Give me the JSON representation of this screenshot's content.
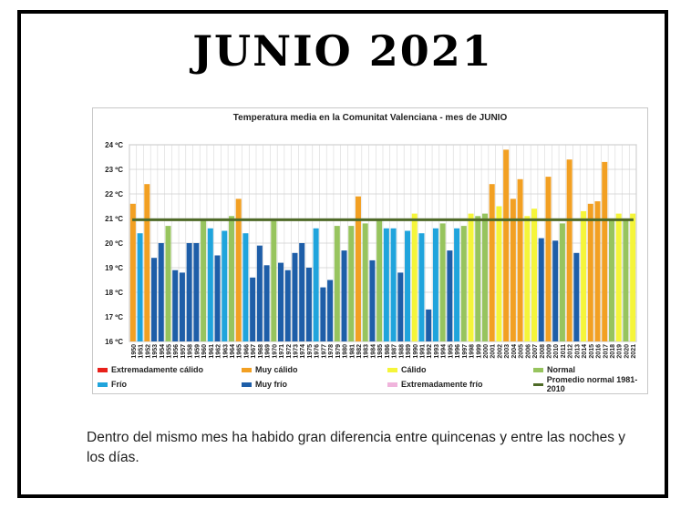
{
  "page": {
    "title": "JUNIO 2021",
    "caption": "Dentro del mismo mes ha habido gran diferencia entre quincenas y entre las noches y los días."
  },
  "chart_data": {
    "type": "bar",
    "title": "Temperatura media en la Comunitat Valenciana - mes de JUNIO",
    "ylim": [
      16,
      24
    ],
    "yticks": [
      "16 ºC",
      "17 ºC",
      "18 ºC",
      "19 ºC",
      "20 ºC",
      "21 ºC",
      "22 ºC",
      "23 ºC",
      "24 ºC"
    ],
    "grid": true,
    "legend_position": "bottom",
    "reference_line": {
      "name": "Promedio normal 1981-2010",
      "value": 20.95,
      "color": "#4e6a27"
    },
    "colors": {
      "EC": "#e8201a",
      "MC": "#f2a023",
      "C": "#f5f53a",
      "N": "#97c45e",
      "F": "#20a4dc",
      "MF": "#1e5ea8",
      "EF": "#f0b4dc"
    },
    "legend": [
      {
        "key": "EC",
        "label": "Extremadamente cálido"
      },
      {
        "key": "MC",
        "label": "Muy cálido"
      },
      {
        "key": "C",
        "label": "Cálido"
      },
      {
        "key": "N",
        "label": "Normal"
      },
      {
        "key": "F",
        "label": "Frío"
      },
      {
        "key": "MF",
        "label": "Muy frío"
      },
      {
        "key": "EF",
        "label": "Extremadamente frío"
      }
    ],
    "categories": [
      "1950",
      "1951",
      "1952",
      "1953",
      "1954",
      "1955",
      "1956",
      "1957",
      "1958",
      "1959",
      "1960",
      "1961",
      "1962",
      "1963",
      "1964",
      "1965",
      "1966",
      "1967",
      "1968",
      "1969",
      "1970",
      "1971",
      "1972",
      "1973",
      "1974",
      "1975",
      "1976",
      "1977",
      "1978",
      "1979",
      "1980",
      "1981",
      "1982",
      "1983",
      "1984",
      "1985",
      "1986",
      "1987",
      "1988",
      "1989",
      "1990",
      "1991",
      "1992",
      "1993",
      "1994",
      "1995",
      "1996",
      "1997",
      "1998",
      "1999",
      "2000",
      "2001",
      "2002",
      "2003",
      "2004",
      "2005",
      "2006",
      "2007",
      "2008",
      "2009",
      "2010",
      "2011",
      "2012",
      "2013",
      "2014",
      "2015",
      "2016",
      "2017",
      "2018",
      "2019",
      "2020",
      "2021"
    ],
    "values": [
      21.6,
      20.4,
      22.4,
      19.4,
      20.0,
      20.7,
      18.9,
      18.8,
      20.0,
      20.0,
      21.0,
      20.6,
      19.5,
      20.5,
      21.1,
      21.8,
      20.4,
      18.6,
      19.9,
      19.1,
      20.9,
      19.2,
      18.9,
      19.6,
      20.0,
      19.0,
      20.6,
      18.2,
      18.5,
      20.7,
      19.7,
      20.7,
      21.9,
      20.8,
      19.3,
      21.0,
      20.6,
      20.6,
      18.8,
      20.5,
      21.2,
      20.4,
      17.3,
      20.6,
      20.8,
      19.7,
      20.6,
      20.7,
      21.2,
      21.1,
      21.2,
      22.4,
      21.5,
      23.8,
      21.8,
      22.6,
      21.1,
      21.4,
      20.2,
      22.7,
      20.1,
      20.8,
      23.4,
      19.6,
      21.3,
      21.6,
      21.7,
      23.3,
      21.0,
      21.2,
      21.0,
      21.2
    ],
    "classes": [
      "MC",
      "F",
      "MC",
      "MF",
      "MF",
      "N",
      "MF",
      "MF",
      "MF",
      "MF",
      "N",
      "F",
      "MF",
      "F",
      "N",
      "MC",
      "F",
      "MF",
      "MF",
      "MF",
      "N",
      "MF",
      "MF",
      "MF",
      "MF",
      "MF",
      "F",
      "MF",
      "MF",
      "N",
      "MF",
      "N",
      "MC",
      "N",
      "MF",
      "N",
      "F",
      "F",
      "MF",
      "F",
      "C",
      "F",
      "MF",
      "F",
      "N",
      "MF",
      "F",
      "N",
      "C",
      "N",
      "N",
      "MC",
      "C",
      "MC",
      "MC",
      "MC",
      "C",
      "C",
      "MF",
      "MC",
      "MF",
      "N",
      "MC",
      "MF",
      "C",
      "MC",
      "MC",
      "MC",
      "N",
      "C",
      "N",
      "C"
    ]
  }
}
